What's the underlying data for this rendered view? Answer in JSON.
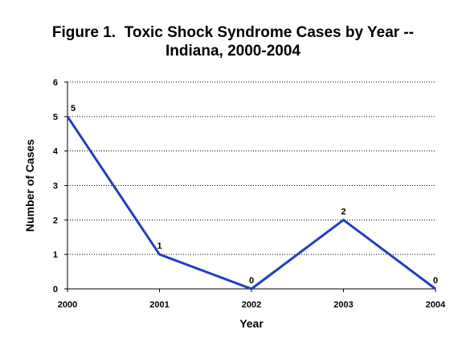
{
  "chart_data": {
    "type": "line",
    "title_lines": [
      "Figure 1.  Toxic Shock Syndrome Cases by Year --",
      "Indiana, 2000-2004"
    ],
    "xlabel": "Year",
    "ylabel": "Number of Cases",
    "categories": [
      "2000",
      "2001",
      "2002",
      "2003",
      "2004"
    ],
    "series": [
      {
        "values": [
          5,
          1,
          0,
          2,
          0
        ],
        "color": "#1f3fbf"
      }
    ],
    "data_labels": [
      "5",
      "1",
      "0",
      "2",
      "0"
    ],
    "ylim": [
      0,
      6
    ],
    "yticks": [
      0,
      1,
      2,
      3,
      4,
      5,
      6
    ],
    "grid": "horizontal-dotted",
    "legend": "none"
  }
}
